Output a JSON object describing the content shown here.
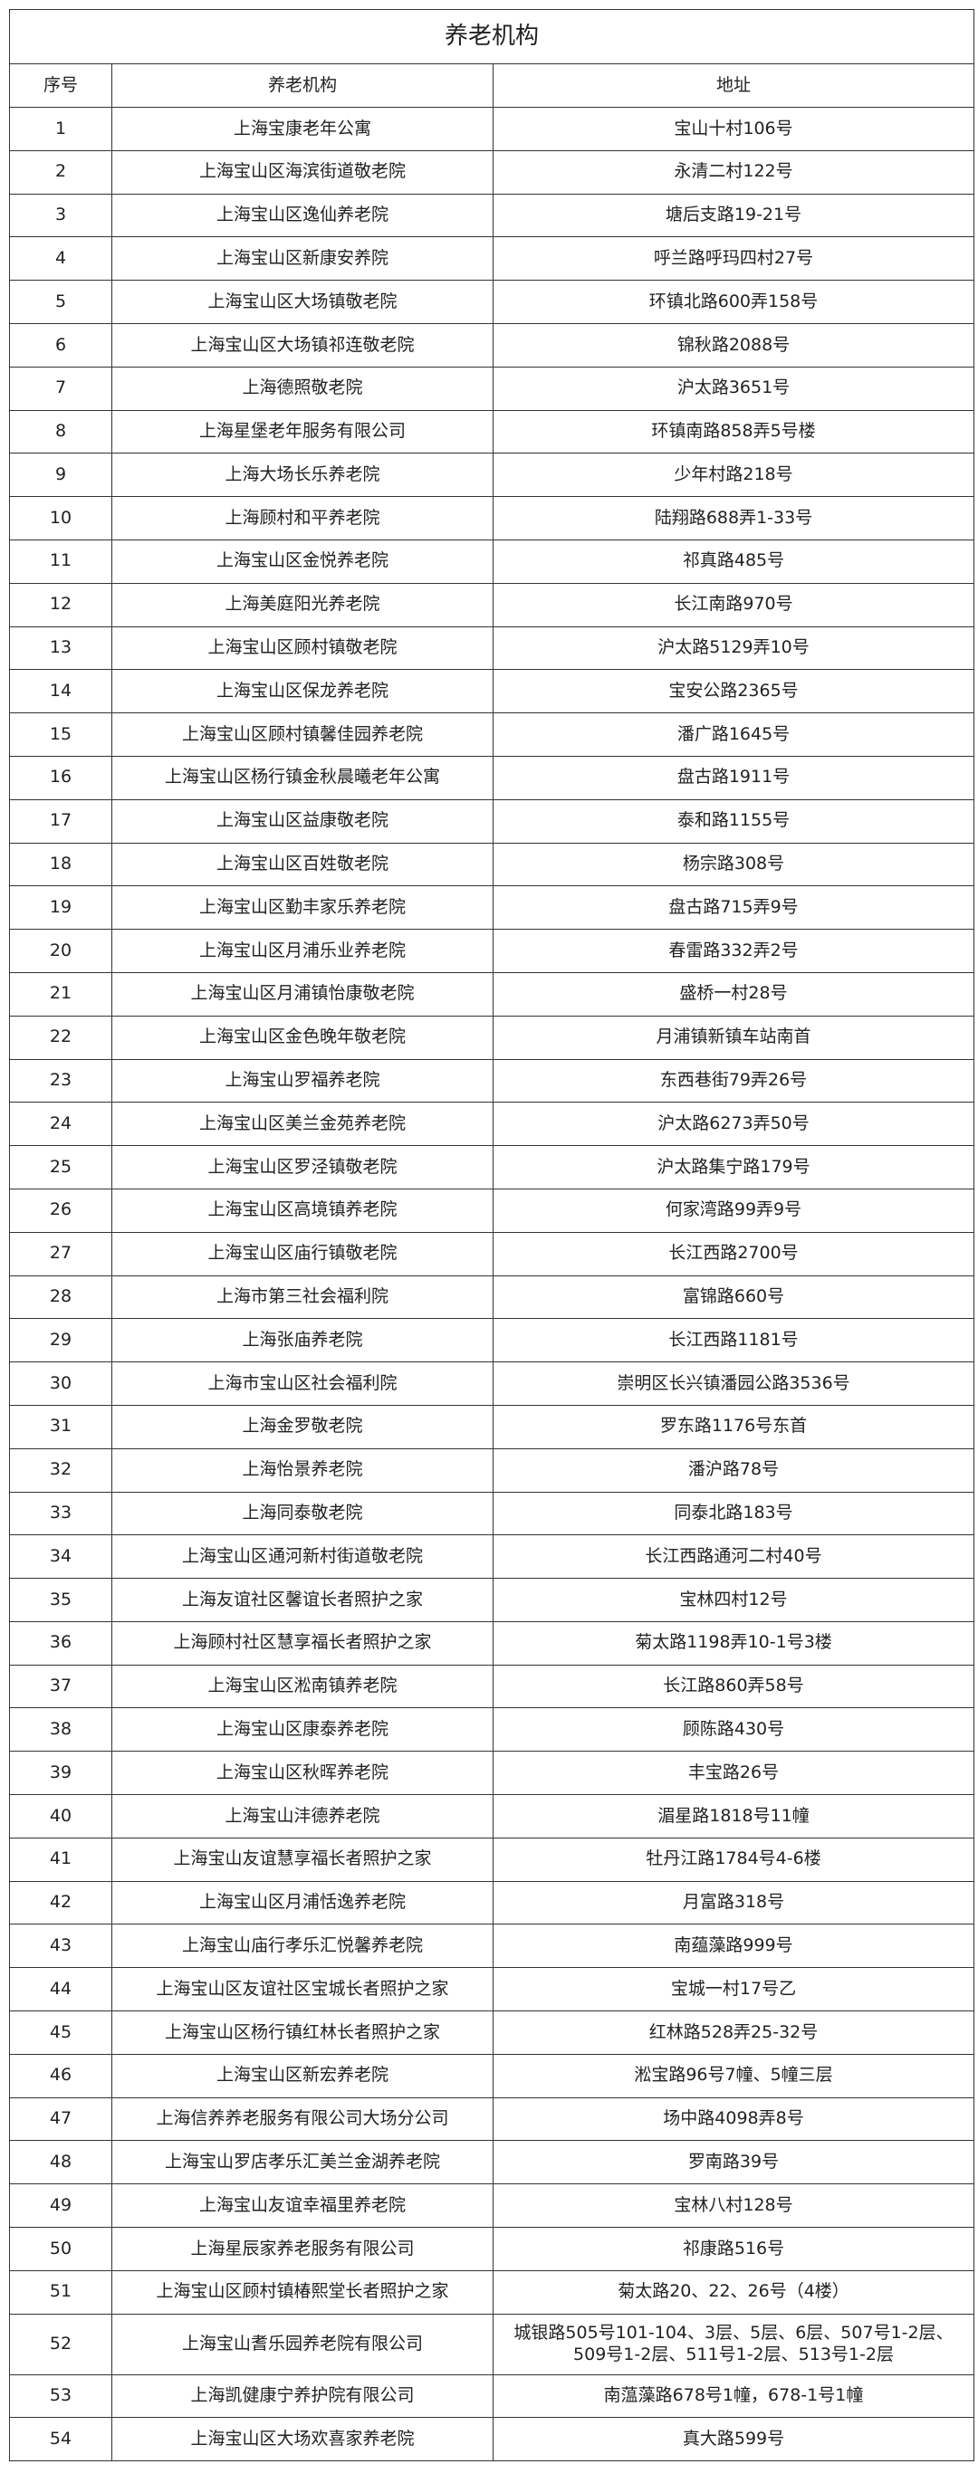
{
  "title": "养老机构",
  "headers": {
    "index": "序号",
    "name": "养老机构",
    "address": "地址"
  },
  "rows": [
    {
      "no": "1",
      "name": "上海宝康老年公寓",
      "address": "宝山十村106号"
    },
    {
      "no": "2",
      "name": "上海宝山区海滨街道敬老院",
      "address": "永清二村122号"
    },
    {
      "no": "3",
      "name": "上海宝山区逸仙养老院",
      "address": "塘后支路19-21号"
    },
    {
      "no": "4",
      "name": "上海宝山区新康安养院",
      "address": "呼兰路呼玛四村27号"
    },
    {
      "no": "5",
      "name": "上海宝山区大场镇敬老院",
      "address": "环镇北路600弄158号"
    },
    {
      "no": "6",
      "name": "上海宝山区大场镇祁连敬老院",
      "address": "锦秋路2088号"
    },
    {
      "no": "7",
      "name": "上海德照敬老院",
      "address": "沪太路3651号"
    },
    {
      "no": "8",
      "name": "上海星堡老年服务有限公司",
      "address": "环镇南路858弄5号楼"
    },
    {
      "no": "9",
      "name": "上海大场长乐养老院",
      "address": "少年村路218号"
    },
    {
      "no": "10",
      "name": "上海顾村和平养老院",
      "address": "陆翔路688弄1-33号"
    },
    {
      "no": "11",
      "name": "上海宝山区金悦养老院",
      "address": "祁真路485号"
    },
    {
      "no": "12",
      "name": "上海美庭阳光养老院",
      "address": "长江南路970号"
    },
    {
      "no": "13",
      "name": "上海宝山区顾村镇敬老院",
      "address": "沪太路5129弄10号"
    },
    {
      "no": "14",
      "name": "上海宝山区保龙养老院",
      "address": "宝安公路2365号"
    },
    {
      "no": "15",
      "name": "上海宝山区顾村镇馨佳园养老院",
      "address": "潘广路1645号"
    },
    {
      "no": "16",
      "name": "上海宝山区杨行镇金秋晨曦老年公寓",
      "address": "盘古路1911号"
    },
    {
      "no": "17",
      "name": "上海宝山区益康敬老院",
      "address": "泰和路1155号"
    },
    {
      "no": "18",
      "name": "上海宝山区百姓敬老院",
      "address": "杨宗路308号"
    },
    {
      "no": "19",
      "name": "上海宝山区勤丰家乐养老院",
      "address": "盘古路715弄9号"
    },
    {
      "no": "20",
      "name": "上海宝山区月浦乐业养老院",
      "address": "春雷路332弄2号"
    },
    {
      "no": "21",
      "name": "上海宝山区月浦镇怡康敬老院",
      "address": "盛桥一村28号"
    },
    {
      "no": "22",
      "name": "上海宝山区金色晚年敬老院",
      "address": "月浦镇新镇车站南首"
    },
    {
      "no": "23",
      "name": "上海宝山罗福养老院",
      "address": "东西巷街79弄26号"
    },
    {
      "no": "24",
      "name": "上海宝山区美兰金苑养老院",
      "address": "沪太路6273弄50号"
    },
    {
      "no": "25",
      "name": "上海宝山区罗泾镇敬老院",
      "address": "沪太路集宁路179号"
    },
    {
      "no": "26",
      "name": "上海宝山区高境镇养老院",
      "address": "何家湾路99弄9号"
    },
    {
      "no": "27",
      "name": "上海宝山区庙行镇敬老院",
      "address": "长江西路2700号"
    },
    {
      "no": "28",
      "name": "上海市第三社会福利院",
      "address": "富锦路660号"
    },
    {
      "no": "29",
      "name": "上海张庙养老院",
      "address": "长江西路1181号"
    },
    {
      "no": "30",
      "name": "上海市宝山区社会福利院",
      "address": "崇明区长兴镇潘园公路3536号"
    },
    {
      "no": "31",
      "name": "上海金罗敬老院",
      "address": "罗东路1176号东首"
    },
    {
      "no": "32",
      "name": "上海怡景养老院",
      "address": "潘沪路78号"
    },
    {
      "no": "33",
      "name": "上海同泰敬老院",
      "address": "同泰北路183号"
    },
    {
      "no": "34",
      "name": "上海宝山区通河新村街道敬老院",
      "address": "长江西路通河二村40号"
    },
    {
      "no": "35",
      "name": "上海友谊社区馨谊长者照护之家",
      "address": "宝林四村12号"
    },
    {
      "no": "36",
      "name": "上海顾村社区慧享福长者照护之家",
      "address": "菊太路1198弄10-1号3楼"
    },
    {
      "no": "37",
      "name": "上海宝山区淞南镇养老院",
      "address": "长江路860弄58号"
    },
    {
      "no": "38",
      "name": "上海宝山区康泰养老院",
      "address": "顾陈路430号"
    },
    {
      "no": "39",
      "name": "上海宝山区秋晖养老院",
      "address": "丰宝路26号"
    },
    {
      "no": "40",
      "name": "上海宝山沣德养老院",
      "address": "湄星路1818号11幢"
    },
    {
      "no": "41",
      "name": "上海宝山友谊慧享福长者照护之家",
      "address": "牡丹江路1784号4-6楼"
    },
    {
      "no": "42",
      "name": "上海宝山区月浦恬逸养老院",
      "address": "月富路318号"
    },
    {
      "no": "43",
      "name": "上海宝山庙行孝乐汇悦馨养老院",
      "address": "南蕴藻路999号"
    },
    {
      "no": "44",
      "name": "上海宝山区友谊社区宝城长者照护之家",
      "address": "宝城一村17号乙"
    },
    {
      "no": "45",
      "name": "上海宝山区杨行镇红林长者照护之家",
      "address": "红林路528弄25-32号"
    },
    {
      "no": "46",
      "name": "上海宝山区新宏养老院",
      "address": "淞宝路96号7幢、5幢三层"
    },
    {
      "no": "47",
      "name": "上海信养养老服务有限公司大场分公司",
      "address": "场中路4098弄8号"
    },
    {
      "no": "48",
      "name": "上海宝山罗店孝乐汇美兰金湖养老院",
      "address": "罗南路39号"
    },
    {
      "no": "49",
      "name": "上海宝山友谊幸福里养老院",
      "address": "宝林八村128号"
    },
    {
      "no": "50",
      "name": "上海星辰家养老服务有限公司",
      "address": "祁康路516号"
    },
    {
      "no": "51",
      "name": "上海宝山区顾村镇椿熙堂长者照护之家",
      "address": "菊太路20、22、26号（4楼）"
    },
    {
      "no": "52",
      "name": "上海宝山耆乐园养老院有限公司",
      "address": "城银路505号101-104、3层、5层、6层、507号1-2层、509号1-2层、511号1-2层、513号1-2层"
    },
    {
      "no": "53",
      "name": "上海凯健康宁养护院有限公司",
      "address": "南蕰藻路678号1幢，678-1号1幢"
    },
    {
      "no": "54",
      "name": "上海宝山区大场欢喜家养老院",
      "address": "真大路599号"
    }
  ]
}
